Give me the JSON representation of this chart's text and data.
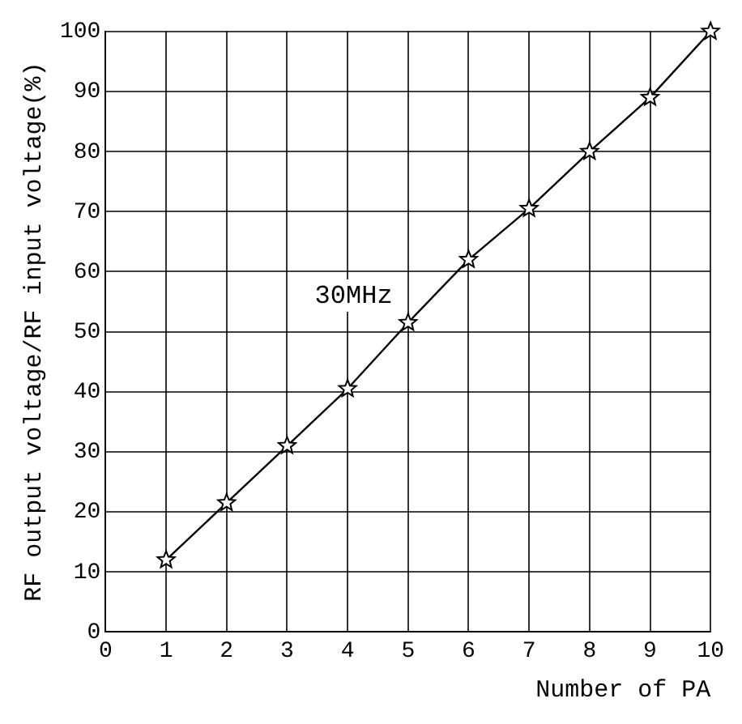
{
  "chart_data": {
    "type": "line",
    "xlabel": "Number of PA",
    "ylabel": "RF output voltage/RF input voltage(%)",
    "x": [
      1,
      2,
      3,
      4,
      5,
      6,
      7,
      8,
      9,
      10
    ],
    "series": [
      {
        "color": "#000000",
        "values": [
          12,
          21.5,
          31,
          40.5,
          51.5,
          62,
          70.5,
          80,
          89,
          100
        ]
      }
    ],
    "xlim": [
      0,
      10
    ],
    "xticks": [
      0,
      1,
      2,
      3,
      4,
      5,
      6,
      7,
      8,
      9,
      10
    ],
    "ylim": [
      0,
      100
    ],
    "yticks": [
      0,
      10,
      20,
      30,
      40,
      50,
      60,
      70,
      80,
      90,
      100
    ],
    "grid": true,
    "legend": false,
    "marker": "star",
    "line_style": "solid",
    "annotations": [
      "30MHz"
    ]
  }
}
